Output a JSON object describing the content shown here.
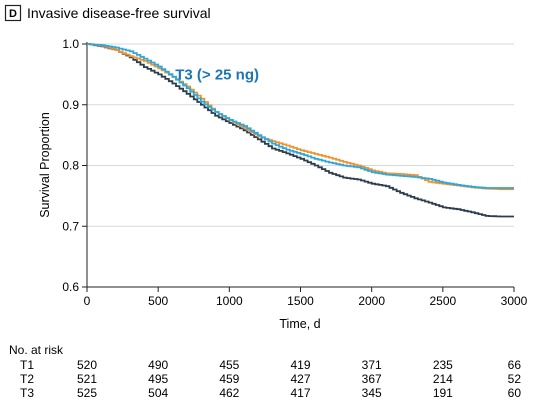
{
  "panel": {
    "letter": "D",
    "title": "Invasive disease-free survival"
  },
  "colors": {
    "T1": "#f0922e",
    "T2": "#2fa7d8",
    "T3": "#2c3e4e",
    "annotation": "#1d76b3"
  },
  "chart_data": {
    "type": "line",
    "xlabel": "Time, d",
    "ylabel": "Survival Proportion",
    "xlim": [
      0,
      3000
    ],
    "ylim": [
      0.6,
      1.0
    ],
    "xticks": [
      0,
      500,
      1000,
      1500,
      2000,
      2500,
      3000
    ],
    "yticks": [
      0.6,
      0.7,
      0.8,
      0.9,
      1.0
    ],
    "ytick_labels": [
      "0.6",
      "0.7",
      "0.8",
      "0.9",
      "1.0"
    ],
    "grid": true,
    "annotation": {
      "text": "T3 (> 25 ng)",
      "x": 620,
      "y": 0.95
    },
    "series": [
      {
        "key": "T1",
        "points": [
          [
            0,
            1.0
          ],
          [
            100,
            0.997
          ],
          [
            200,
            0.99
          ],
          [
            300,
            0.98
          ],
          [
            400,
            0.972
          ],
          [
            500,
            0.96
          ],
          [
            600,
            0.946
          ],
          [
            700,
            0.93
          ],
          [
            800,
            0.91
          ],
          [
            900,
            0.888
          ],
          [
            1000,
            0.874
          ],
          [
            1100,
            0.862
          ],
          [
            1200,
            0.848
          ],
          [
            1300,
            0.84
          ],
          [
            1400,
            0.833
          ],
          [
            1500,
            0.825
          ],
          [
            1600,
            0.819
          ],
          [
            1700,
            0.813
          ],
          [
            1800,
            0.806
          ],
          [
            1900,
            0.8
          ],
          [
            2000,
            0.792
          ],
          [
            2100,
            0.787
          ],
          [
            2200,
            0.786
          ],
          [
            2300,
            0.784
          ],
          [
            2400,
            0.773
          ],
          [
            2500,
            0.77
          ],
          [
            2600,
            0.767
          ],
          [
            2700,
            0.764
          ],
          [
            2800,
            0.762
          ],
          [
            2900,
            0.761
          ],
          [
            3000,
            0.761
          ]
        ]
      },
      {
        "key": "T2",
        "points": [
          [
            0,
            1.0
          ],
          [
            100,
            0.998
          ],
          [
            200,
            0.994
          ],
          [
            300,
            0.988
          ],
          [
            400,
            0.976
          ],
          [
            500,
            0.963
          ],
          [
            600,
            0.946
          ],
          [
            700,
            0.927
          ],
          [
            800,
            0.905
          ],
          [
            900,
            0.888
          ],
          [
            1000,
            0.875
          ],
          [
            1100,
            0.865
          ],
          [
            1200,
            0.85
          ],
          [
            1300,
            0.836
          ],
          [
            1400,
            0.826
          ],
          [
            1500,
            0.819
          ],
          [
            1600,
            0.811
          ],
          [
            1700,
            0.805
          ],
          [
            1800,
            0.8
          ],
          [
            1900,
            0.797
          ],
          [
            2000,
            0.789
          ],
          [
            2100,
            0.785
          ],
          [
            2200,
            0.783
          ],
          [
            2300,
            0.781
          ],
          [
            2400,
            0.778
          ],
          [
            2500,
            0.772
          ],
          [
            2600,
            0.768
          ],
          [
            2700,
            0.765
          ],
          [
            2800,
            0.763
          ],
          [
            2900,
            0.763
          ],
          [
            3000,
            0.763
          ]
        ]
      },
      {
        "key": "T3",
        "points": [
          [
            0,
            1.0
          ],
          [
            100,
            0.996
          ],
          [
            200,
            0.99
          ],
          [
            300,
            0.978
          ],
          [
            400,
            0.962
          ],
          [
            500,
            0.95
          ],
          [
            600,
            0.935
          ],
          [
            700,
            0.918
          ],
          [
            800,
            0.9
          ],
          [
            900,
            0.882
          ],
          [
            1000,
            0.87
          ],
          [
            1100,
            0.858
          ],
          [
            1200,
            0.843
          ],
          [
            1300,
            0.828
          ],
          [
            1400,
            0.82
          ],
          [
            1500,
            0.811
          ],
          [
            1600,
            0.8
          ],
          [
            1700,
            0.788
          ],
          [
            1800,
            0.78
          ],
          [
            1900,
            0.777
          ],
          [
            2000,
            0.77
          ],
          [
            2100,
            0.766
          ],
          [
            2200,
            0.755
          ],
          [
            2300,
            0.746
          ],
          [
            2400,
            0.739
          ],
          [
            2500,
            0.731
          ],
          [
            2600,
            0.728
          ],
          [
            2700,
            0.723
          ],
          [
            2800,
            0.717
          ],
          [
            2900,
            0.716
          ],
          [
            3000,
            0.716
          ]
        ]
      }
    ]
  },
  "at_risk": {
    "heading": "No. at risk",
    "rows": [
      {
        "label": "T1",
        "values": [
          "520",
          "490",
          "455",
          "419",
          "371",
          "235",
          "66"
        ]
      },
      {
        "label": "T2",
        "values": [
          "521",
          "495",
          "459",
          "427",
          "367",
          "214",
          "52"
        ]
      },
      {
        "label": "T3",
        "values": [
          "525",
          "504",
          "462",
          "417",
          "345",
          "191",
          "60"
        ]
      }
    ]
  }
}
